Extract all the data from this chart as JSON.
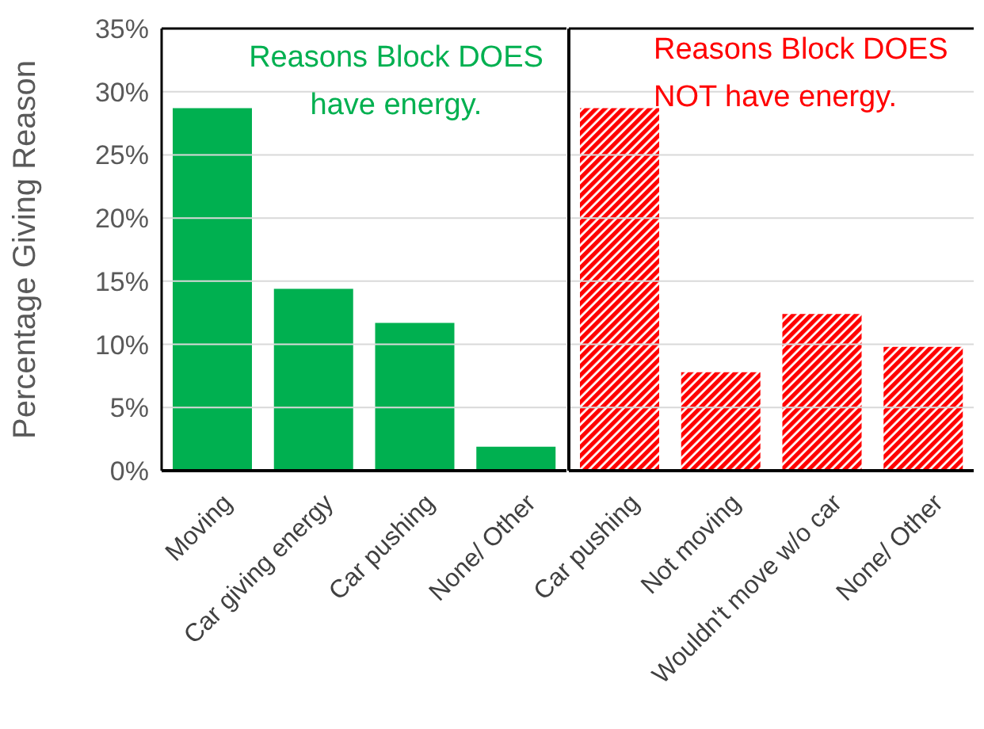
{
  "chart_data": [
    {
      "type": "bar",
      "ylabel": "Percentage Giving Reason",
      "categories": [
        "Moving",
        "Car giving energy",
        "Car pushing",
        "None/ Other"
      ],
      "values": [
        28.7,
        14.4,
        11.7,
        1.9
      ],
      "color": "#00b050",
      "ylim": [
        0,
        35
      ],
      "yticks": [
        {
          "value": 0,
          "label": "0%"
        },
        {
          "value": 5,
          "label": "5%"
        },
        {
          "value": 10,
          "label": "10%"
        },
        {
          "value": 15,
          "label": "15%"
        },
        {
          "value": 20,
          "label": "20%"
        },
        {
          "value": 25,
          "label": "25%"
        },
        {
          "value": 30,
          "label": "30%"
        },
        {
          "value": 35,
          "label": "35%"
        }
      ],
      "grid": "y",
      "annotations": [
        "Reasons Block DOES have energy."
      ]
    },
    {
      "type": "bar",
      "categories": [
        "Car pushing",
        "Not moving",
        "Wouldn't move w/o car",
        "None/ Other"
      ],
      "values": [
        28.7,
        7.8,
        12.4,
        9.8
      ],
      "color": "#ff0000",
      "ylim": [
        0,
        35
      ],
      "yticks": [
        0,
        5,
        10,
        15,
        20,
        25,
        30,
        35
      ],
      "grid": "y",
      "tick_labels": "x",
      "annotations": [
        "Reasons Block DOES NOT have energy."
      ]
    }
  ]
}
